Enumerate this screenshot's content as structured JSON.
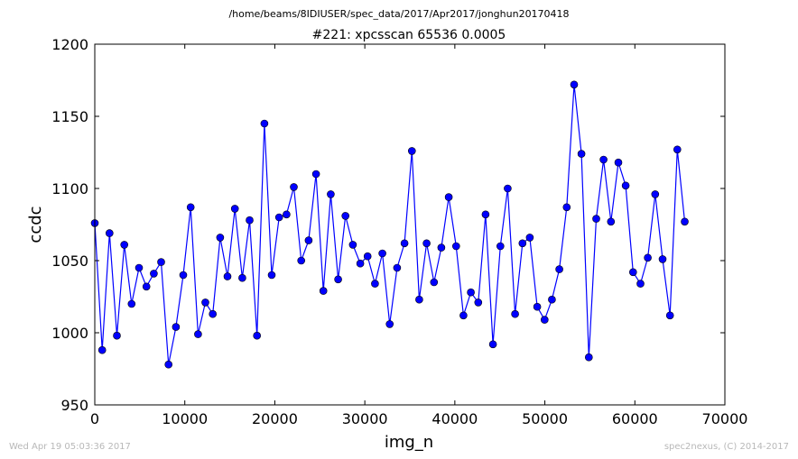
{
  "header": {
    "path": "/home/beams/8IDIUSER/spec_data/2017/Apr2017/jonghun20170418",
    "scan_title": "#221: xpcsscan 65536 0.0005"
  },
  "footer": {
    "timestamp": "Wed Apr 19 05:03:36 2017",
    "credit": "spec2nexus, (C) 2014-2017"
  },
  "colors": {
    "series": "#0000ff",
    "marker_fill": "#0000ff",
    "marker_edge": "#000000",
    "axes": "#000000"
  },
  "chart_data": {
    "type": "line",
    "title": "#221: xpcsscan 65536 0.0005",
    "xlabel": "img_n",
    "ylabel": "ccdc",
    "xlim": [
      0,
      70000
    ],
    "ylim": [
      950,
      1200
    ],
    "xticks": [
      0,
      10000,
      20000,
      30000,
      40000,
      50000,
      60000,
      70000
    ],
    "xtick_labels": [
      "0",
      "10000",
      "20000",
      "30000",
      "40000",
      "50000",
      "60000",
      "70000"
    ],
    "yticks": [
      950,
      1000,
      1050,
      1100,
      1150,
      1200
    ],
    "ytick_labels": [
      "950",
      "1000",
      "1050",
      "1100",
      "1150",
      "1200"
    ],
    "grid": false,
    "markers": true,
    "series": [
      {
        "x": [
          0,
          819,
          1638,
          2458,
          3277,
          4096,
          4915,
          5734,
          6554,
          7373,
          8192,
          9011,
          9830,
          10650,
          11469,
          12288,
          13107,
          13926,
          14746,
          15565,
          16384,
          17203,
          18022,
          18842,
          19661,
          20480,
          21299,
          22118,
          22938,
          23757,
          24576,
          25395,
          26214,
          27034,
          27853,
          28672,
          29491,
          30310,
          31130,
          31949,
          32768,
          33587,
          34406,
          35226,
          36045,
          36864,
          37683,
          38502,
          39322,
          40141,
          40960,
          41779,
          42598,
          43418,
          44237,
          45056,
          45875,
          46694,
          47514,
          48333,
          49152,
          49971,
          50790,
          51610,
          52429,
          53248,
          54067,
          54886,
          55706,
          56525,
          57344,
          58163,
          58982,
          59802,
          60621,
          61440,
          62259,
          63078,
          63898,
          64717,
          65536
        ],
        "y": [
          1076,
          988,
          1069,
          998,
          1061,
          1020,
          1045,
          1032,
          1041,
          1049,
          978,
          1004,
          1040,
          1087,
          999,
          1021,
          1013,
          1066,
          1039,
          1086,
          1038,
          1078,
          998,
          1145,
          1040,
          1080,
          1082,
          1101,
          1050,
          1064,
          1110,
          1029,
          1096,
          1037,
          1081,
          1061,
          1048,
          1053,
          1034,
          1055,
          1006,
          1045,
          1062,
          1126,
          1023,
          1062,
          1035,
          1059,
          1094,
          1060,
          1012,
          1028,
          1021,
          1082,
          992,
          1060,
          1100,
          1013,
          1062,
          1066,
          1018,
          1009,
          1023,
          1044,
          1087,
          1172,
          1124,
          983,
          1079,
          1120,
          1077,
          1118,
          1102,
          1042,
          1034,
          1052,
          1096,
          1051,
          1012,
          1127,
          1077
        ]
      }
    ]
  }
}
